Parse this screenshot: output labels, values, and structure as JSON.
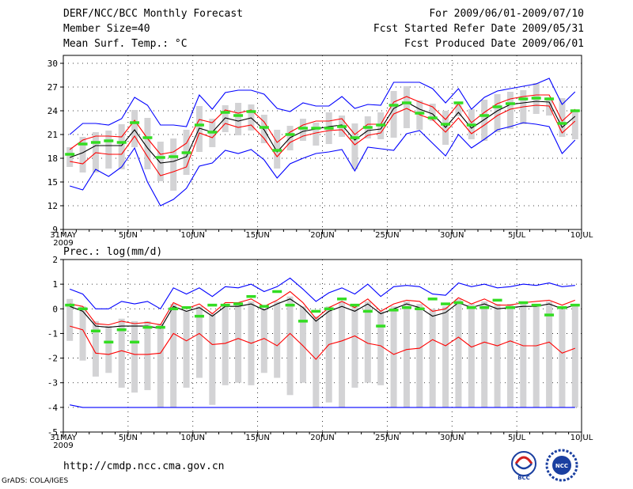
{
  "header": {
    "title": "DERF/NCC/BCC Monthly Forecast",
    "member_size": "Member Size=40",
    "variable": "Mean Surf. Temp.: °C",
    "forecast_range": "For 2009/06/01-2009/07/10",
    "started_refer": "Fcst Started Refer Date 2009/05/31",
    "produced": "Fcst Produced Date 2009/06/01"
  },
  "footer": {
    "url": "http://cmdp.ncc.cma.gov.cn",
    "credit": "GrADS: COLA/IGES",
    "logo_left_text": "BCC",
    "logo_right_text": "NCC"
  },
  "chart_data": [
    {
      "type": "box-ensemble",
      "title": "Mean Surf. Temp.: °C",
      "ylim": [
        9,
        31
      ],
      "yticks": [
        9,
        12,
        15,
        18,
        21,
        24,
        27,
        30
      ],
      "x": [
        1,
        2,
        3,
        4,
        5,
        6,
        7,
        8,
        9,
        10,
        11,
        12,
        13,
        14,
        15,
        16,
        17,
        18,
        19,
        20,
        21,
        22,
        23,
        24,
        25,
        26,
        27,
        28,
        29,
        30,
        31,
        32,
        33,
        34,
        35,
        36,
        37,
        38,
        39,
        40,
        41
      ],
      "xtick_labels": [
        {
          "x": 1,
          "label": "31MAY",
          "sub": "2009"
        },
        {
          "x": 6,
          "label": "5JUN"
        },
        {
          "x": 11,
          "label": "10JUN"
        },
        {
          "x": 16,
          "label": "15JUN"
        },
        {
          "x": 21,
          "label": "20JUN"
        },
        {
          "x": 26,
          "label": "25JUN"
        },
        {
          "x": 31,
          "label": "30JUN"
        },
        {
          "x": 36,
          "label": "5JUL"
        },
        {
          "x": 41,
          "label": "10JUL"
        }
      ],
      "series": [
        {
          "name": "max",
          "color": "#0000ff",
          "values": [
            21.0,
            22.4,
            22.4,
            22.2,
            23.0,
            25.7,
            24.7,
            22.2,
            22.2,
            22.0,
            26.0,
            24.2,
            26.3,
            26.6,
            26.6,
            26.1,
            24.3,
            23.9,
            25.0,
            24.6,
            24.6,
            25.8,
            24.3,
            24.8,
            24.7,
            27.6,
            27.6,
            27.6,
            26.8,
            25.0,
            26.8,
            24.2,
            25.7,
            26.5,
            26.8,
            27.1,
            27.4,
            28.1,
            24.8,
            26.4
          ]
        },
        {
          "name": "upper",
          "color": "#ff0000",
          "values": [
            19.1,
            20.3,
            20.8,
            20.8,
            20.7,
            22.8,
            20.5,
            18.5,
            18.8,
            19.9,
            22.9,
            22.5,
            24.1,
            23.7,
            24.1,
            22.6,
            20.0,
            21.3,
            22.2,
            22.7,
            22.7,
            23.0,
            21.0,
            22.3,
            22.3,
            25.1,
            25.8,
            25.1,
            24.5,
            22.9,
            24.9,
            22.5,
            23.8,
            24.9,
            25.5,
            25.8,
            26.0,
            26.0,
            22.7,
            24.2
          ]
        },
        {
          "name": "mean",
          "color": "#000000",
          "values": [
            18.1,
            18.7,
            19.6,
            19.6,
            19.6,
            21.6,
            19.3,
            17.4,
            17.6,
            18.2,
            21.8,
            21.3,
            23.1,
            22.7,
            23.1,
            21.6,
            18.8,
            20.6,
            21.4,
            21.7,
            22.0,
            22.2,
            20.3,
            21.5,
            21.7,
            24.3,
            25.1,
            24.2,
            23.6,
            21.9,
            23.8,
            21.8,
            22.9,
            24.0,
            24.8,
            25.0,
            25.2,
            25.1,
            21.9,
            23.3
          ]
        },
        {
          "name": "lower",
          "color": "#ff0000",
          "values": [
            17.6,
            17.3,
            18.7,
            18.5,
            18.5,
            20.8,
            18.2,
            15.8,
            16.3,
            16.9,
            21.2,
            20.6,
            22.4,
            21.9,
            22.2,
            20.5,
            18.2,
            20.0,
            20.8,
            21.2,
            21.5,
            21.6,
            19.7,
            20.9,
            21.2,
            23.6,
            24.3,
            23.5,
            22.9,
            21.3,
            23.1,
            21.1,
            22.2,
            23.4,
            24.2,
            24.5,
            24.7,
            24.6,
            21.2,
            22.7
          ]
        },
        {
          "name": "min",
          "color": "#0000ff",
          "values": [
            14.5,
            14.0,
            16.6,
            15.7,
            16.9,
            19.3,
            15.0,
            12.0,
            12.8,
            14.2,
            17.0,
            17.4,
            19.0,
            18.6,
            19.1,
            17.8,
            15.5,
            17.3,
            18.0,
            18.6,
            18.8,
            19.1,
            16.4,
            19.4,
            19.2,
            19.0,
            21.1,
            21.5,
            19.9,
            18.3,
            21.0,
            19.3,
            20.4,
            21.6,
            22.0,
            22.5,
            22.3,
            22.0,
            18.6,
            20.3
          ]
        },
        {
          "name": "observed",
          "color": "#33dd22",
          "values": [
            18.5,
            19.8,
            20.0,
            20.2,
            20.0,
            22.5,
            20.6,
            18.1,
            18.2,
            18.7,
            22.2,
            21.3,
            23.8,
            23.4,
            23.9,
            21.9,
            19.0,
            21.0,
            21.8,
            21.8,
            21.8,
            22.0,
            20.6,
            21.9,
            22.2,
            24.7,
            25.0,
            23.7,
            23.1,
            22.3,
            25.0,
            22.2,
            23.4,
            24.5,
            24.9,
            25.5,
            25.6,
            25.5,
            22.4,
            24.0
          ]
        }
      ],
      "boxes_low": [
        16.9,
        16.2,
        16.2,
        16.7,
        16.6,
        19.4,
        16.6,
        15.1,
        13.9,
        15.9,
        18.8,
        19.4,
        21.3,
        20.9,
        21.5,
        19.9,
        16.7,
        19.0,
        20.2,
        19.6,
        19.8,
        20.7,
        16.6,
        20.5,
        20.4,
        20.6,
        21.8,
        21.6,
        22.7,
        19.7,
        23.3,
        20.4,
        20.2,
        21.3,
        21.7,
        22.3,
        23.6,
        23.4,
        20.7,
        20.4
      ],
      "boxes_high": [
        19.4,
        20.7,
        21.3,
        21.5,
        22.3,
        24.1,
        23.1,
        20.1,
        20.5,
        21.6,
        24.6,
        23.0,
        24.7,
        25.0,
        24.8,
        23.5,
        21.6,
        22.1,
        23.0,
        22.5,
        23.8,
        23.4,
        22.4,
        23.3,
        23.8,
        26.5,
        27.1,
        25.3,
        24.9,
        24.0,
        24.8,
        24.2,
        25.4,
        26.1,
        26.4,
        26.6,
        27.5,
        25.7,
        25.6,
        23.9
      ]
    },
    {
      "type": "box-ensemble",
      "title": "Prec.: log(mm/d)",
      "ylim": [
        -5,
        2
      ],
      "yticks": [
        -5,
        -4,
        -3,
        -2,
        -1,
        0,
        1,
        2
      ],
      "x": [
        1,
        2,
        3,
        4,
        5,
        6,
        7,
        8,
        9,
        10,
        11,
        12,
        13,
        14,
        15,
        16,
        17,
        18,
        19,
        20,
        21,
        22,
        23,
        24,
        25,
        26,
        27,
        28,
        29,
        30,
        31,
        32,
        33,
        34,
        35,
        36,
        37,
        38,
        39,
        40,
        41
      ],
      "xtick_labels": [
        {
          "x": 1,
          "label": "31MAY",
          "sub": "2009"
        },
        {
          "x": 6,
          "label": "5JUN"
        },
        {
          "x": 11,
          "label": "10JUN"
        },
        {
          "x": 16,
          "label": "15JUN"
        },
        {
          "x": 21,
          "label": "20JUN"
        },
        {
          "x": 26,
          "label": "25JUN"
        },
        {
          "x": 31,
          "label": "30JUN"
        },
        {
          "x": 36,
          "label": "5JUL"
        },
        {
          "x": 41,
          "label": "10JUL"
        }
      ],
      "series": [
        {
          "name": "max",
          "color": "#0000ff",
          "values": [
            0.8,
            0.6,
            0.0,
            0.0,
            0.3,
            0.2,
            0.3,
            0.0,
            0.85,
            0.6,
            0.85,
            0.5,
            0.9,
            0.85,
            1.0,
            0.7,
            0.9,
            1.25,
            0.8,
            0.3,
            0.65,
            0.85,
            0.6,
            1.0,
            0.5,
            0.9,
            0.95,
            0.9,
            0.6,
            0.55,
            1.05,
            0.9,
            1.0,
            0.85,
            0.9,
            1.0,
            0.95,
            1.05,
            0.9,
            0.95
          ]
        },
        {
          "name": "upper",
          "color": "#ff0000",
          "values": [
            0.2,
            0.1,
            -0.6,
            -0.65,
            -0.5,
            -0.6,
            -0.55,
            -0.65,
            0.25,
            0.0,
            0.2,
            -0.2,
            0.25,
            0.25,
            0.4,
            0.1,
            0.35,
            0.7,
            0.25,
            -0.4,
            0.05,
            0.3,
            0.05,
            0.4,
            -0.1,
            0.2,
            0.35,
            0.3,
            -0.1,
            0.0,
            0.45,
            0.2,
            0.4,
            0.15,
            0.15,
            0.25,
            0.3,
            0.35,
            0.15,
            0.35
          ]
        },
        {
          "name": "mean",
          "color": "#000000",
          "values": [
            0.1,
            -0.1,
            -0.7,
            -0.75,
            -0.7,
            -0.7,
            -0.7,
            -0.8,
            0.1,
            -0.1,
            0.05,
            -0.3,
            0.1,
            0.1,
            0.2,
            -0.05,
            0.2,
            0.4,
            0.05,
            -0.5,
            -0.1,
            0.1,
            -0.1,
            0.2,
            -0.2,
            0.0,
            0.2,
            0.05,
            -0.3,
            -0.15,
            0.25,
            0.05,
            0.2,
            0.0,
            0.05,
            0.1,
            0.1,
            0.2,
            0.0,
            0.15
          ]
        },
        {
          "name": "lower",
          "color": "#ff0000",
          "values": [
            -0.7,
            -0.85,
            -1.8,
            -1.85,
            -1.7,
            -1.85,
            -1.85,
            -1.8,
            -1.0,
            -1.3,
            -1.0,
            -1.45,
            -1.4,
            -1.2,
            -1.4,
            -1.2,
            -1.5,
            -1.0,
            -1.5,
            -2.05,
            -1.45,
            -1.3,
            -1.1,
            -1.4,
            -1.5,
            -1.85,
            -1.65,
            -1.6,
            -1.25,
            -1.5,
            -1.15,
            -1.55,
            -1.35,
            -1.5,
            -1.3,
            -1.5,
            -1.5,
            -1.35,
            -1.8,
            -1.6
          ]
        },
        {
          "name": "min",
          "color": "#0000ff",
          "values": [
            -3.9,
            -4.0,
            -4.0,
            -4.0,
            -4.0,
            -4.0,
            -4.0,
            -4.0,
            -4.0,
            -4.0,
            -4.0,
            -4.0,
            -4.0,
            -4.0,
            -4.0,
            -4.0,
            -4.0,
            -4.0,
            -4.0,
            -4.0,
            -4.0,
            -4.0,
            -4.0,
            -4.0,
            -4.0,
            -4.0,
            -4.0,
            -4.0,
            -4.0,
            -4.0,
            -4.0,
            -4.0,
            -4.0,
            -4.0,
            -4.0,
            -4.0,
            -4.0,
            -4.0,
            -4.0,
            -4.0
          ]
        },
        {
          "name": "observed",
          "color": "#33dd22",
          "values": [
            0.15,
            0.0,
            -0.9,
            -1.35,
            -0.85,
            -1.35,
            -0.75,
            -0.75,
            0.0,
            0.05,
            -0.3,
            0.15,
            0.15,
            0.2,
            0.5,
            0.1,
            0.7,
            0.15,
            -0.5,
            -0.1,
            0.0,
            0.4,
            0.15,
            -0.1,
            -0.7,
            -0.05,
            0.05,
            0.0,
            0.4,
            0.2,
            0.25,
            0.05,
            0.05,
            0.35,
            0.05,
            0.25,
            0.15,
            -0.25,
            0.05,
            0.15
          ]
        }
      ],
      "boxes_low": [
        -1.3,
        -2.1,
        -2.75,
        -2.6,
        -3.2,
        -3.4,
        -3.3,
        -4.0,
        -4.0,
        -3.2,
        -2.8,
        -3.9,
        -3.1,
        -3.0,
        -3.1,
        -2.6,
        -2.8,
        -3.5,
        -3.0,
        -4.0,
        -3.8,
        -4.0,
        -3.2,
        -3.0,
        -3.1,
        -4.0,
        -4.0,
        -4.0,
        -4.0,
        -4.0,
        -4.0,
        -4.0,
        -4.0,
        -4.0,
        -4.0,
        -4.0,
        -4.0,
        -4.0,
        -4.0,
        -4.0
      ],
      "boxes_high": [
        0.4,
        0.1,
        -0.5,
        -0.7,
        -0.4,
        -0.5,
        -0.5,
        -0.6,
        0.2,
        -0.1,
        0.1,
        -0.2,
        0.2,
        0.2,
        0.3,
        0.0,
        0.3,
        0.5,
        0.1,
        -0.3,
        0.1,
        0.3,
        0.2,
        0.3,
        -0.1,
        0.1,
        0.3,
        0.2,
        0.0,
        0.1,
        0.4,
        0.2,
        0.3,
        0.2,
        0.2,
        0.3,
        0.2,
        0.3,
        0.0,
        0.2
      ]
    }
  ]
}
